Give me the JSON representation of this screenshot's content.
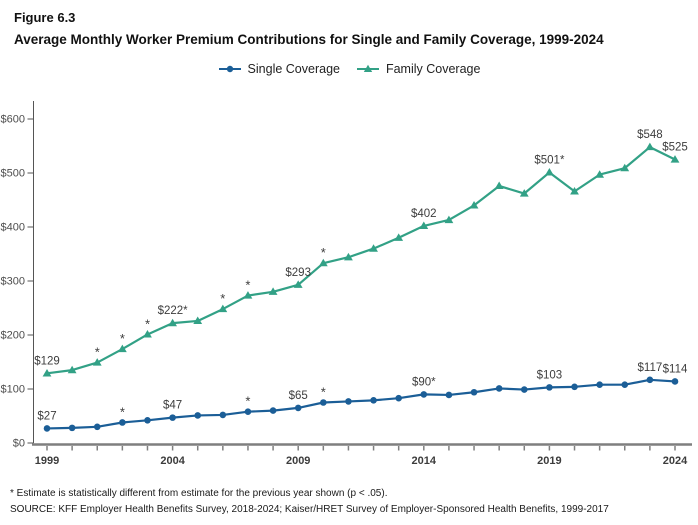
{
  "figure": {
    "label": "Figure 6.3",
    "title": "Average Monthly Worker Premium Contributions for Single and Family Coverage, 1999-2024"
  },
  "legend": [
    {
      "label": "Single Coverage",
      "color": "#1b5e97",
      "marker": "circle"
    },
    {
      "label": "Family Coverage",
      "color": "#32a186",
      "marker": "triangle"
    }
  ],
  "chart_data": {
    "type": "line",
    "title": "Average Monthly Worker Premium Contributions for Single and Family Coverage, 1999-2024",
    "xlabel": "",
    "ylabel": "",
    "grid": false,
    "legend_position": "top",
    "ylim": [
      0,
      620
    ],
    "ytick_values": [
      0,
      100,
      200,
      300,
      400,
      500,
      600
    ],
    "ytick_labels": [
      "$0",
      "$100",
      "$200",
      "$300",
      "$400",
      "$500",
      "$600"
    ],
    "x": [
      1999,
      2000,
      2001,
      2002,
      2003,
      2004,
      2005,
      2006,
      2007,
      2008,
      2009,
      2010,
      2011,
      2012,
      2013,
      2014,
      2015,
      2016,
      2017,
      2018,
      2019,
      2020,
      2021,
      2022,
      2023,
      2024
    ],
    "xticks_labeled": [
      1999,
      2004,
      2009,
      2014,
      2019,
      2024
    ],
    "series": [
      {
        "name": "Single Coverage",
        "color": "#1b5e97",
        "marker": "circle",
        "values": [
          27,
          28,
          30,
          38,
          42,
          47,
          51,
          52,
          58,
          60,
          65,
          75,
          77,
          79,
          83,
          90,
          89,
          94,
          101,
          99,
          103,
          104,
          108,
          108,
          117,
          114
        ],
        "asterisk_years": [
          2002,
          2007,
          2010
        ],
        "point_labels": [
          {
            "year": 1999,
            "text": "$27"
          },
          {
            "year": 2004,
            "text": "$47"
          },
          {
            "year": 2009,
            "text": "$65"
          },
          {
            "year": 2014,
            "text": "$90*"
          },
          {
            "year": 2019,
            "text": "$103"
          },
          {
            "year": 2023,
            "text": "$117"
          },
          {
            "year": 2024,
            "text": "$114"
          }
        ]
      },
      {
        "name": "Family Coverage",
        "color": "#32a186",
        "marker": "triangle",
        "values": [
          129,
          135,
          149,
          174,
          201,
          222,
          226,
          248,
          273,
          280,
          293,
          333,
          344,
          360,
          380,
          402,
          413,
          440,
          476,
          462,
          501,
          466,
          497,
          509,
          548,
          525
        ],
        "asterisk_years": [
          2001,
          2002,
          2003,
          2006,
          2007,
          2010
        ],
        "point_labels": [
          {
            "year": 1999,
            "text": "$129"
          },
          {
            "year": 2004,
            "text": "$222*"
          },
          {
            "year": 2009,
            "text": "$293"
          },
          {
            "year": 2014,
            "text": "$402"
          },
          {
            "year": 2019,
            "text": "$501*"
          },
          {
            "year": 2023,
            "text": "$548"
          },
          {
            "year": 2024,
            "text": "$525"
          }
        ]
      }
    ]
  },
  "footnotes": {
    "significance": "* Estimate is statistically different from estimate for the previous year shown (p < .05).",
    "source": "SOURCE: KFF Employer Health Benefits Survey, 2018-2024; Kaiser/HRET Survey of Employer-Sponsored Health Benefits, 1999-2017"
  }
}
